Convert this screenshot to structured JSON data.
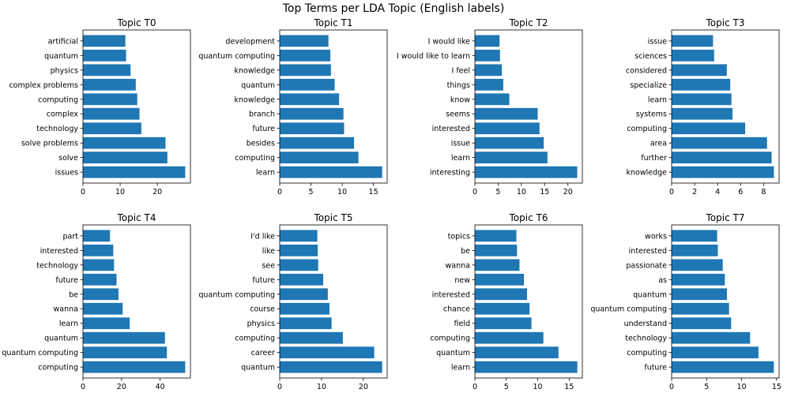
{
  "title": "Top Terms per LDA Topic (English labels)",
  "colors": {
    "bar": "#1f77b4",
    "axis": "#000000",
    "background": "#ffffff"
  },
  "chart_data": [
    {
      "type": "bar",
      "orientation": "horizontal",
      "title": "Topic T0",
      "categories": [
        "issues",
        "solve",
        "solve problems",
        "technology",
        "complex",
        "computing",
        "complex problems",
        "physics",
        "quantum",
        "artificial"
      ],
      "values": [
        27.5,
        22.7,
        22.2,
        15.7,
        15.2,
        14.6,
        14.2,
        12.8,
        11.6,
        11.4
      ],
      "xlim": [
        0,
        28.9
      ],
      "xticks": [
        0,
        10,
        20
      ]
    },
    {
      "type": "bar",
      "orientation": "horizontal",
      "title": "Topic T1",
      "categories": [
        "learn",
        "computing",
        "besides",
        "future",
        "branch",
        "knowledge",
        "quantum",
        "knowledge",
        "quantum computing",
        "development"
      ],
      "values": [
        16.4,
        12.6,
        11.9,
        10.3,
        10.2,
        9.5,
        8.8,
        8.2,
        8.1,
        7.8
      ],
      "xlim": [
        0,
        17.2
      ],
      "xticks": [
        0,
        5,
        10,
        15
      ]
    },
    {
      "type": "bar",
      "orientation": "horizontal",
      "title": "Topic T2",
      "categories": [
        "interesting",
        "learn",
        "issue",
        "interested",
        "seems",
        "know",
        "things",
        "I feel",
        "I would like to learn",
        "I would like"
      ],
      "values": [
        22.0,
        15.6,
        14.8,
        13.9,
        13.5,
        7.4,
        6.1,
        5.8,
        5.4,
        5.3
      ],
      "xlim": [
        0,
        23.1
      ],
      "xticks": [
        0,
        5,
        10,
        15,
        20
      ]
    },
    {
      "type": "bar",
      "orientation": "horizontal",
      "title": "Topic T3",
      "categories": [
        "knowledge",
        "further",
        "area",
        "computing",
        "systems",
        "learn",
        "specialize",
        "considered",
        "sciences",
        "issue"
      ],
      "values": [
        8.9,
        8.7,
        8.3,
        6.4,
        5.3,
        5.2,
        5.1,
        4.8,
        3.7,
        3.6
      ],
      "xlim": [
        0,
        9.35
      ],
      "xticks": [
        0,
        2,
        4,
        6,
        8
      ]
    },
    {
      "type": "bar",
      "orientation": "horizontal",
      "title": "Topic T4",
      "categories": [
        "computing",
        "quantum computing",
        "quantum",
        "learn",
        "wanna",
        "be",
        "future",
        "technology",
        "interested",
        "part"
      ],
      "values": [
        53.0,
        43.5,
        42.5,
        24.2,
        20.6,
        18.4,
        17.4,
        16.1,
        15.7,
        14.0
      ],
      "xlim": [
        0,
        55.7
      ],
      "xticks": [
        0,
        20,
        40
      ]
    },
    {
      "type": "bar",
      "orientation": "horizontal",
      "title": "Topic T5",
      "categories": [
        "quantum",
        "career",
        "computing",
        "physics",
        "course",
        "quantum computing",
        "future",
        "see",
        "like",
        "I'd like"
      ],
      "values": [
        24.5,
        22.6,
        15.1,
        12.4,
        11.9,
        11.5,
        10.4,
        9.2,
        9.1,
        9.0
      ],
      "xlim": [
        0,
        25.7
      ],
      "xticks": [
        0,
        10,
        20
      ]
    },
    {
      "type": "bar",
      "orientation": "horizontal",
      "title": "Topic T6",
      "categories": [
        "learn",
        "quantum",
        "computing",
        "field",
        "chance",
        "interested",
        "new",
        "wanna",
        "be",
        "topics"
      ],
      "values": [
        16.3,
        13.3,
        10.9,
        9.0,
        8.7,
        8.3,
        7.8,
        7.1,
        6.7,
        6.6
      ],
      "xlim": [
        0,
        17.1
      ],
      "xticks": [
        0,
        5,
        10,
        15
      ]
    },
    {
      "type": "bar",
      "orientation": "horizontal",
      "title": "Topic T7",
      "categories": [
        "future",
        "computing",
        "technology",
        "understand",
        "quantum computing",
        "quantum",
        "as",
        "passionate",
        "interested",
        "works"
      ],
      "values": [
        14.6,
        12.4,
        11.2,
        8.5,
        8.2,
        7.9,
        7.6,
        7.3,
        6.6,
        6.5
      ],
      "xlim": [
        0,
        15.35
      ],
      "xticks": [
        0,
        5,
        10,
        15
      ]
    }
  ]
}
